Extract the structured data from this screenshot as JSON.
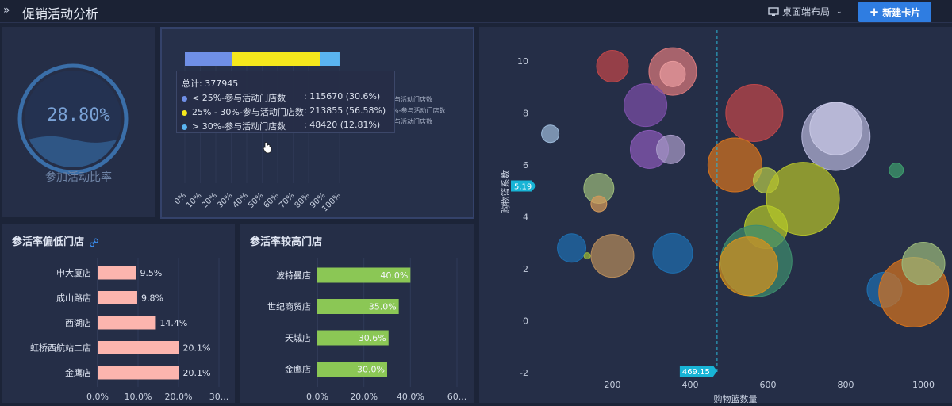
{
  "header": {
    "title": "促销活动分析",
    "layout_label": "桌面端布局",
    "new_card_label": "新建卡片"
  },
  "gauge": {
    "value_text": "28.80%",
    "value": 0.288,
    "label": "参加活动比率"
  },
  "stack_panel": {
    "tooltip": {
      "total": "总计: 377945",
      "rows": [
        {
          "label": "< 25%-参与活动门店数",
          "value": ": 115670 (30.6%)",
          "color": "#6f8fe6"
        },
        {
          "label": "25% - 30%-参与活动门店数",
          "value": ": 213855 (56.58%)",
          "color": "#f5e81c"
        },
        {
          "label": "> 30%-参与活动门店数",
          "value": ": 48420 (12.81%)",
          "color": "#5ab4f0"
        }
      ]
    },
    "legend_fragments": [
      "与活动门店数",
      "%-参与活动门店数",
      "与活动门店数"
    ]
  },
  "low_panel": {
    "title": "参活率偏低门店",
    "chain_icon": "link-icon"
  },
  "high_panel": {
    "title": "参活率较高门店"
  },
  "scatter_panel": {
    "marker_y_label": "5.19",
    "marker_x_label": "469.15"
  },
  "chart_data": [
    {
      "type": "bar",
      "orientation": "horizontal-stacked",
      "x_ticks": [
        "0%",
        "10%",
        "20%",
        "30%",
        "40%",
        "50%",
        "60%",
        "70%",
        "80%",
        "90%",
        "100%"
      ],
      "series": [
        {
          "name": "< 25%-参与活动门店数",
          "values": [
            30.6
          ]
        },
        {
          "name": "25% - 30%-参与活动门店数",
          "values": [
            56.58
          ]
        },
        {
          "name": "> 30%-参与活动门店数",
          "values": [
            12.81
          ]
        }
      ]
    },
    {
      "type": "bar",
      "orientation": "horizontal",
      "categories": [
        "申大厦店",
        "成山路店",
        "西湖店",
        "虹桥西航站二店",
        "金鹰店"
      ],
      "values": [
        9.5,
        9.8,
        14.4,
        20.1,
        20.1
      ],
      "value_labels": [
        "9.5%",
        "9.8%",
        "14.4%",
        "20.1%",
        "20.1%"
      ],
      "x_ticks": [
        "0.0%",
        "10.0%",
        "20.0%",
        "30..."
      ],
      "xlim": [
        0,
        30
      ]
    },
    {
      "type": "bar",
      "orientation": "horizontal",
      "categories": [
        "波特曼店",
        "世纪商贸店",
        "天城店",
        "金鹰店"
      ],
      "values": [
        40.0,
        35.0,
        30.6,
        30.0
      ],
      "value_labels": [
        "40.0%",
        "35.0%",
        "30.6%",
        "30.0%"
      ],
      "x_ticks": [
        "0.0%",
        "20.0%",
        "40.0%",
        "60..."
      ],
      "xlim": [
        0,
        60
      ]
    },
    {
      "type": "scatter",
      "xlabel": "购物篮数量",
      "ylabel": "购物篮系数",
      "xlim": [
        0,
        1000
      ],
      "ylim": [
        -2,
        10
      ],
      "x_ticks": [
        "200",
        "400",
        "600",
        "800",
        "1000"
      ],
      "y_ticks": [
        "-2",
        "0",
        "2",
        "4",
        "6",
        "8",
        "10"
      ],
      "reference_x": 469.15,
      "reference_y": 5.19,
      "points": [
        {
          "x": 200,
          "y": 9.8,
          "r": 20,
          "color": "#c0474a"
        },
        {
          "x": 355,
          "y": 9.6,
          "r": 30,
          "color": "#d9797c"
        },
        {
          "x": 355,
          "y": 9.5,
          "r": 16,
          "color": "#e89a9c"
        },
        {
          "x": 285,
          "y": 8.3,
          "r": 27,
          "color": "#7b4fa8"
        },
        {
          "x": 295,
          "y": 6.6,
          "r": 24,
          "color": "#8a5ab8"
        },
        {
          "x": 350,
          "y": 6.6,
          "r": 18,
          "color": "#a89ac8"
        },
        {
          "x": 40,
          "y": 7.2,
          "r": 11,
          "color": "#9bb8d8"
        },
        {
          "x": 165,
          "y": 5.1,
          "r": 19,
          "color": "#9ab87a"
        },
        {
          "x": 165,
          "y": 4.5,
          "r": 10,
          "color": "#d49a5a"
        },
        {
          "x": 565,
          "y": 8.0,
          "r": 36,
          "color": "#c0474a"
        },
        {
          "x": 775,
          "y": 7.1,
          "r": 43,
          "color": "#b4b4d8"
        },
        {
          "x": 775,
          "y": 7.4,
          "r": 33,
          "color": "#c8c8e4"
        },
        {
          "x": 930,
          "y": 5.8,
          "r": 9,
          "color": "#3e9e6e"
        },
        {
          "x": 515,
          "y": 6.0,
          "r": 34,
          "color": "#d4731e"
        },
        {
          "x": 595,
          "y": 5.4,
          "r": 16,
          "color": "#b4c84a"
        },
        {
          "x": 690,
          "y": 4.7,
          "r": 46,
          "color": "#b4c02a"
        },
        {
          "x": 595,
          "y": 3.6,
          "r": 27,
          "color": "#b4c82a"
        },
        {
          "x": 570,
          "y": 2.3,
          "r": 45,
          "color": "#3e8e6e"
        },
        {
          "x": 550,
          "y": 2.1,
          "r": 37,
          "color": "#d4921e"
        },
        {
          "x": 95,
          "y": 2.8,
          "r": 18,
          "color": "#1e6eae"
        },
        {
          "x": 135,
          "y": 2.5,
          "r": 4,
          "color": "#9ab83a"
        },
        {
          "x": 200,
          "y": 2.5,
          "r": 27,
          "color": "#b48a5a"
        },
        {
          "x": 355,
          "y": 2.6,
          "r": 25,
          "color": "#1e6eae"
        },
        {
          "x": 900,
          "y": 1.2,
          "r": 22,
          "color": "#1e6eae"
        },
        {
          "x": 975,
          "y": 1.1,
          "r": 44,
          "color": "#d4731e"
        },
        {
          "x": 1000,
          "y": 2.2,
          "r": 27,
          "color": "#9ab87a"
        }
      ]
    }
  ]
}
